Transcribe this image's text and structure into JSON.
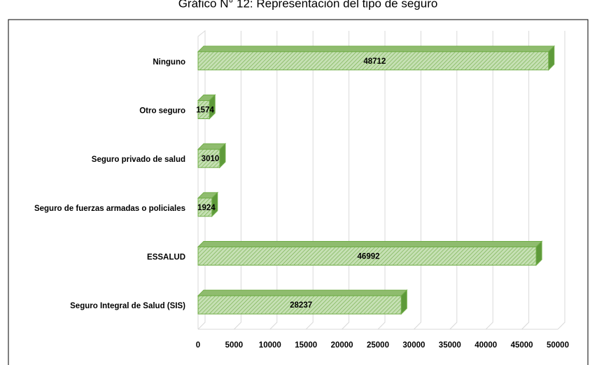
{
  "chart_data": {
    "type": "bar",
    "orientation": "horizontal",
    "title": "Gráfico N° 12: Representación del tipo de seguro",
    "categories": [
      "Ninguno",
      "Otro seguro",
      "Seguro privado de salud",
      "Seguro de fuerzas armadas o policiales",
      "ESSALUD",
      "Seguro Integral de Salud (SIS)"
    ],
    "values": [
      48712,
      1574,
      3010,
      1924,
      46992,
      28237
    ],
    "color": "#a9d08e",
    "xlim": [
      0,
      50000
    ],
    "xticks": [
      0,
      5000,
      10000,
      15000,
      20000,
      25000,
      30000,
      35000,
      40000,
      45000,
      50000
    ],
    "grid": true
  }
}
